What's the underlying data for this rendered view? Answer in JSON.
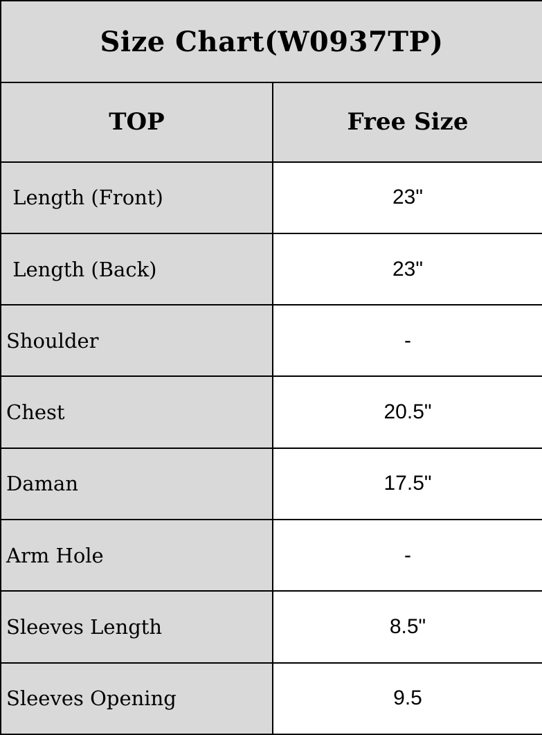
{
  "title": "Size Chart(W0937TP)",
  "columns": [
    "TOP",
    "Free Size"
  ],
  "rows": [
    {
      "label": " Length (Front)",
      "value": "23\""
    },
    {
      "label": " Length (Back)",
      "value": "23\""
    },
    {
      "label": "Shoulder",
      "value": "-"
    },
    {
      "label": "Chest",
      "value": "20.5\""
    },
    {
      "label": "Daman",
      "value": "17.5\""
    },
    {
      "label": "Arm Hole",
      "value": "-"
    },
    {
      "label": "Sleeves Length",
      "value": "8.5\""
    },
    {
      "label": "Sleeves Opening",
      "value": "9.5"
    }
  ],
  "colors": {
    "cell_gray": "#d9d9d9",
    "cell_white": "#ffffff",
    "border": "#000000",
    "text": "#000000"
  },
  "chart_data": {
    "type": "table",
    "title": "Size Chart(W0937TP)",
    "columns": [
      "TOP",
      "Free Size"
    ],
    "rows": [
      [
        "Length (Front)",
        "23\""
      ],
      [
        "Length (Back)",
        "23\""
      ],
      [
        "Shoulder",
        "-"
      ],
      [
        "Chest",
        "20.5\""
      ],
      [
        "Daman",
        "17.5\""
      ],
      [
        "Arm Hole",
        "-"
      ],
      [
        "Sleeves Length",
        "8.5\""
      ],
      [
        "Sleeves Opening",
        "9.5"
      ]
    ]
  }
}
